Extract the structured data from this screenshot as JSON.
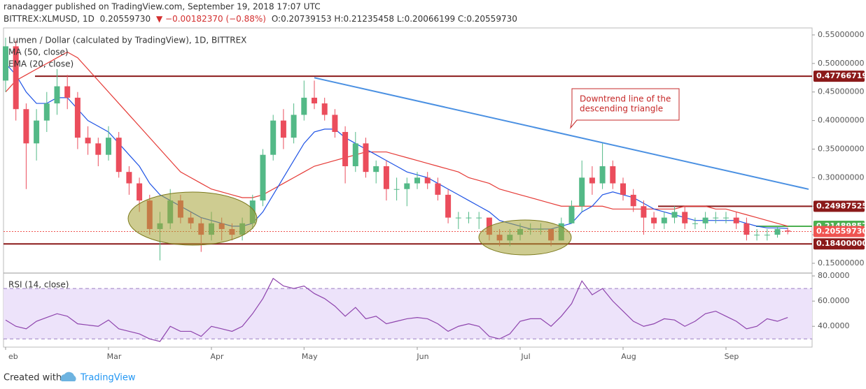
{
  "header": {
    "line1": "ranadagger published on TradingView.com, September 19, 2018 17:07 UTC",
    "symbol": "BITTREX:XLMUSD, 1D",
    "last": "0.20559730",
    "change": "▼ −0.00182370 (−0.88%)",
    "ohlc": "O:0.20739153 H:0.21235458 L:0.20066199 C:0.20559730"
  },
  "chart_data": [
    {
      "type": "candlestick",
      "title": "Lumen / Dollar (calculated by TradingView), 1D, BITTREX",
      "categories": [
        "eb",
        null,
        null,
        null,
        null,
        null,
        null,
        null,
        null,
        null,
        "Mar",
        null,
        null,
        null,
        null,
        null,
        null,
        null,
        null,
        null,
        "Apr",
        null,
        null,
        null,
        null,
        null,
        null,
        null,
        null,
        "May",
        null,
        null,
        null,
        null,
        null,
        null,
        null,
        null,
        null,
        null,
        "Jun",
        null,
        null,
        null,
        null,
        null,
        null,
        null,
        null,
        null,
        "Jul",
        null,
        null,
        null,
        null,
        null,
        null,
        null,
        null,
        null,
        "Aug",
        null,
        null,
        null,
        null,
        null,
        null,
        null,
        null,
        null,
        "Sep",
        null,
        null,
        null,
        null,
        null,
        null
      ],
      "open": [
        0.47,
        0.53,
        0.42,
        0.36,
        0.4,
        0.43,
        0.46,
        0.44,
        0.37,
        0.36,
        0.34,
        0.37,
        0.31,
        0.29,
        0.26,
        0.21,
        0.22,
        0.26,
        0.23,
        0.22,
        0.2,
        0.22,
        0.21,
        0.2,
        0.22,
        0.26,
        0.34,
        0.4,
        0.37,
        0.41,
        0.44,
        0.43,
        0.41,
        0.38,
        0.32,
        0.36,
        0.31,
        0.32,
        0.28,
        0.28,
        0.29,
        0.3,
        0.29,
        0.27,
        0.23,
        0.23,
        0.23,
        0.23,
        0.2,
        0.19,
        0.2,
        0.21,
        0.21,
        0.21,
        0.19,
        0.22,
        0.25,
        0.3,
        0.29,
        0.32,
        0.29,
        0.27,
        0.25,
        0.23,
        0.22,
        0.23,
        0.24,
        0.22,
        0.22,
        0.23,
        0.23,
        0.23,
        0.22,
        0.2,
        0.2,
        0.2,
        0.20739153
      ],
      "high": [
        0.545,
        0.54,
        0.43,
        0.42,
        0.45,
        0.49,
        0.48,
        0.45,
        0.39,
        0.37,
        0.39,
        0.38,
        0.32,
        0.3,
        0.27,
        0.24,
        0.28,
        0.27,
        0.24,
        0.23,
        0.24,
        0.23,
        0.22,
        0.23,
        0.27,
        0.35,
        0.41,
        0.42,
        0.43,
        0.47,
        0.47,
        0.44,
        0.42,
        0.39,
        0.38,
        0.37,
        0.33,
        0.33,
        0.3,
        0.3,
        0.31,
        0.31,
        0.3,
        0.28,
        0.24,
        0.24,
        0.24,
        0.23,
        0.21,
        0.21,
        0.22,
        0.22,
        0.22,
        0.21,
        0.23,
        0.26,
        0.33,
        0.32,
        0.36,
        0.33,
        0.3,
        0.28,
        0.26,
        0.24,
        0.24,
        0.25,
        0.25,
        0.23,
        0.24,
        0.24,
        0.24,
        0.24,
        0.23,
        0.21,
        0.21,
        0.215,
        0.21235458
      ],
      "low": [
        0.45,
        0.4,
        0.28,
        0.33,
        0.38,
        0.41,
        0.42,
        0.35,
        0.34,
        0.32,
        0.33,
        0.3,
        0.27,
        0.24,
        0.2,
        0.155,
        0.21,
        0.22,
        0.21,
        0.17,
        0.19,
        0.19,
        0.19,
        0.19,
        0.21,
        0.25,
        0.33,
        0.35,
        0.36,
        0.4,
        0.42,
        0.4,
        0.37,
        0.29,
        0.31,
        0.3,
        0.29,
        0.26,
        0.26,
        0.25,
        0.28,
        0.28,
        0.26,
        0.22,
        0.21,
        0.22,
        0.21,
        0.19,
        0.18,
        0.18,
        0.19,
        0.2,
        0.2,
        0.18,
        0.19,
        0.22,
        0.24,
        0.27,
        0.28,
        0.28,
        0.26,
        0.24,
        0.2,
        0.21,
        0.21,
        0.22,
        0.21,
        0.21,
        0.21,
        0.22,
        0.22,
        0.21,
        0.19,
        0.19,
        0.19,
        0.195,
        0.20066199
      ],
      "close": [
        0.53,
        0.42,
        0.36,
        0.4,
        0.43,
        0.46,
        0.44,
        0.37,
        0.36,
        0.34,
        0.37,
        0.31,
        0.29,
        0.26,
        0.21,
        0.22,
        0.26,
        0.23,
        0.22,
        0.2,
        0.22,
        0.21,
        0.2,
        0.22,
        0.26,
        0.34,
        0.4,
        0.37,
        0.41,
        0.44,
        0.43,
        0.41,
        0.38,
        0.32,
        0.36,
        0.31,
        0.32,
        0.28,
        0.28,
        0.29,
        0.3,
        0.29,
        0.27,
        0.23,
        0.23,
        0.23,
        0.23,
        0.2,
        0.19,
        0.2,
        0.21,
        0.21,
        0.21,
        0.19,
        0.22,
        0.25,
        0.3,
        0.29,
        0.32,
        0.29,
        0.27,
        0.25,
        0.23,
        0.22,
        0.23,
        0.24,
        0.22,
        0.22,
        0.23,
        0.23,
        0.23,
        0.22,
        0.2,
        0.2,
        0.2,
        0.21,
        0.2055973
      ],
      "up_color": "#53b987",
      "down_color": "#eb4d5c",
      "series": [
        {
          "name": "MA (50, close)",
          "color": "#e53935",
          "values": [
            0.45,
            0.47,
            0.48,
            0.49,
            0.5,
            0.51,
            0.52,
            0.51,
            0.49,
            0.47,
            0.45,
            0.43,
            0.41,
            0.39,
            0.37,
            0.35,
            0.33,
            0.31,
            0.3,
            0.29,
            0.28,
            0.275,
            0.27,
            0.265,
            0.265,
            0.27,
            0.28,
            0.29,
            0.3,
            0.31,
            0.32,
            0.325,
            0.33,
            0.335,
            0.34,
            0.345,
            0.345,
            0.345,
            0.34,
            0.335,
            0.33,
            0.325,
            0.32,
            0.315,
            0.31,
            0.3,
            0.295,
            0.29,
            0.28,
            0.275,
            0.27,
            0.265,
            0.26,
            0.255,
            0.25,
            0.25,
            0.25,
            0.25,
            0.25,
            0.245,
            0.245,
            0.245,
            0.245,
            0.245,
            0.245,
            0.245,
            0.25,
            0.25,
            0.25,
            0.245,
            0.245,
            0.24,
            0.235,
            0.23,
            0.225,
            0.22,
            0.215
          ]
        },
        {
          "name": "EMA (20, close)",
          "color": "#1e53e5",
          "values": [
            0.5,
            0.48,
            0.45,
            0.43,
            0.43,
            0.44,
            0.44,
            0.42,
            0.4,
            0.39,
            0.38,
            0.36,
            0.34,
            0.32,
            0.29,
            0.27,
            0.26,
            0.25,
            0.24,
            0.23,
            0.225,
            0.22,
            0.215,
            0.215,
            0.22,
            0.24,
            0.27,
            0.3,
            0.33,
            0.36,
            0.38,
            0.385,
            0.385,
            0.37,
            0.36,
            0.35,
            0.34,
            0.33,
            0.32,
            0.31,
            0.305,
            0.3,
            0.29,
            0.28,
            0.27,
            0.26,
            0.25,
            0.24,
            0.225,
            0.22,
            0.215,
            0.21,
            0.21,
            0.21,
            0.215,
            0.22,
            0.24,
            0.25,
            0.27,
            0.275,
            0.27,
            0.265,
            0.255,
            0.245,
            0.24,
            0.235,
            0.23,
            0.225,
            0.225,
            0.225,
            0.225,
            0.225,
            0.22,
            0.215,
            0.212,
            0.212,
            0.211
          ]
        }
      ],
      "ylim": [
        0.1341,
        0.5622
      ],
      "yticks": [
        {
          "value": 0.15,
          "label": "0.15000000"
        },
        {
          "value": 0.2,
          "label": "0.20000000"
        },
        {
          "value": 0.25,
          "label": "0.25000000"
        },
        {
          "value": 0.3,
          "label": "0.30000000"
        },
        {
          "value": 0.35,
          "label": "0.35000000"
        },
        {
          "value": 0.4,
          "label": "0.40000000"
        },
        {
          "value": 0.45,
          "label": "0.45000000"
        },
        {
          "value": 0.5,
          "label": "0.50000000"
        },
        {
          "value": 0.55,
          "label": "0.55000000"
        }
      ],
      "levels": [
        {
          "value": 0.47766719,
          "color": "#8b1a1a"
        },
        {
          "value": 0.24987525,
          "color": "#8b1a1a"
        },
        {
          "value": 0.21489857,
          "color": "#4caf50"
        },
        {
          "value": 0.2055973,
          "label": "0.20559730",
          "color": "#ef5350"
        },
        {
          "value": 0.184,
          "label": "0.18400000",
          "color": "#8b1a1a"
        }
      ],
      "trendline": {
        "color": "#4a90e2",
        "x": [
          30,
          76
        ],
        "values": [
          0.475,
          0.288
        ]
      },
      "annotation": [
        "Downtrend line of the",
        "descending triangle"
      ]
    },
    {
      "type": "line",
      "title": "RSI (14, close)",
      "color": "#8e44ad",
      "values": [
        45,
        40,
        38,
        44,
        47,
        50,
        48,
        42,
        41,
        40,
        45,
        38,
        36,
        34,
        30,
        28,
        40,
        36,
        36,
        32,
        40,
        38,
        36,
        40,
        50,
        62,
        78,
        72,
        70,
        72,
        66,
        62,
        56,
        48,
        55,
        46,
        48,
        42,
        44,
        46,
        47,
        46,
        42,
        36,
        40,
        42,
        40,
        32,
        30,
        34,
        44,
        46,
        46,
        40,
        48,
        58,
        76,
        65,
        70,
        60,
        52,
        44,
        40,
        42,
        46,
        45,
        40,
        44,
        50,
        52,
        48,
        44,
        38,
        40,
        46,
        44,
        47
      ],
      "ylim": [
        23.5,
        81.7
      ],
      "yticks": [
        {
          "value": 40,
          "label": "40.0000"
        },
        {
          "value": 60,
          "label": "60.0000"
        },
        {
          "value": 80,
          "label": "80.0000"
        }
      ],
      "bands": [
        30,
        70
      ]
    }
  ],
  "footer": {
    "created": "Created with",
    "brand": "TradingView"
  }
}
